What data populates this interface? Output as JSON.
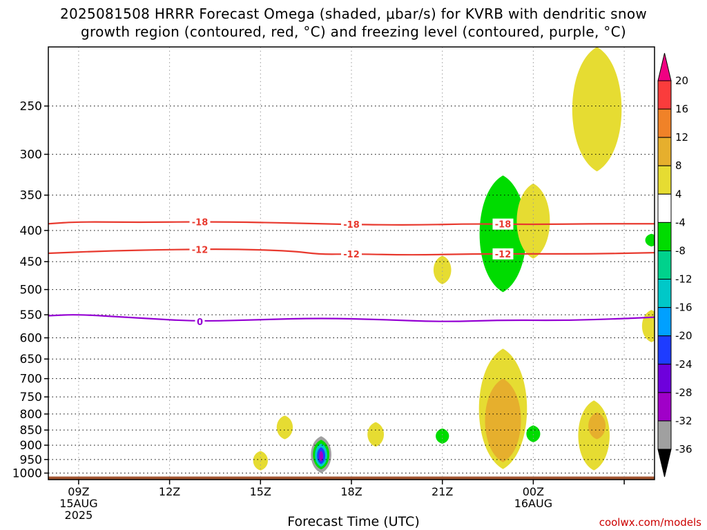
{
  "title_line1": "2025081508 HRRR Forecast Omega (shaded, μbar/s) for KVRB with dendritic snow",
  "title_line2": "growth region (contoured, red, °C) and freezing level (contoured, purple, °C)",
  "credit": "coolwx.com/models",
  "chart_data": {
    "type": "heatmap",
    "title": "2025081508 HRRR Forecast Omega (shaded, μbar/s) for KVRB with dendritic snow growth region (contoured, red, °C) and freezing level (contoured, purple, °C)",
    "xlabel": "Forecast Time (UTC)",
    "ylabel": "",
    "y_scale": "log-pressure (hPa, inverted)",
    "ylim": [
      1025,
      200
    ],
    "y_ticks": [
      250,
      300,
      350,
      400,
      450,
      500,
      550,
      600,
      650,
      700,
      750,
      800,
      850,
      900,
      950,
      1000
    ],
    "x_range_hours": [
      8,
      28
    ],
    "x_ticks": [
      {
        "hour": 9,
        "label": "09Z",
        "sub1": "15AUG",
        "sub2": "2025"
      },
      {
        "hour": 12,
        "label": "12Z",
        "sub1": "",
        "sub2": ""
      },
      {
        "hour": 15,
        "label": "15Z",
        "sub1": "",
        "sub2": ""
      },
      {
        "hour": 18,
        "label": "18Z",
        "sub1": "",
        "sub2": ""
      },
      {
        "hour": 21,
        "label": "21Z",
        "sub1": "",
        "sub2": ""
      },
      {
        "hour": 24,
        "label": "00Z",
        "sub1": "16AUG",
        "sub2": ""
      },
      {
        "hour": 27,
        "label": "",
        "sub1": "",
        "sub2": ""
      }
    ],
    "grid": true,
    "colorbar": {
      "units": "μbar/s",
      "levels": [
        -36,
        -32,
        -28,
        -24,
        -20,
        -16,
        -12,
        -8,
        -4,
        4,
        8,
        12,
        16,
        20
      ],
      "colors": [
        "#000000",
        "#a0a0a0",
        "#a000c8",
        "#6e00dc",
        "#1e3cff",
        "#00a0ff",
        "#00c8c8",
        "#00d28c",
        "#00dc00",
        "#ffffff",
        "#e6dc32",
        "#e6af2d",
        "#f08228",
        "#fa3c3c",
        "#f00082"
      ]
    },
    "contours": [
      {
        "name": "-18",
        "color": "#e8392e",
        "points": [
          [
            8,
            390
          ],
          [
            9,
            387
          ],
          [
            11,
            388
          ],
          [
            13,
            387
          ],
          [
            15,
            388
          ],
          [
            17,
            390
          ],
          [
            18,
            391
          ],
          [
            20,
            392
          ],
          [
            22,
            390
          ],
          [
            24,
            391
          ],
          [
            26,
            390
          ],
          [
            28,
            390
          ]
        ],
        "labels": [
          {
            "hour": 13,
            "text": "-18"
          },
          {
            "hour": 18,
            "text": "-18"
          },
          {
            "hour": 23,
            "text": "-18"
          }
        ]
      },
      {
        "name": "-12",
        "color": "#e8392e",
        "points": [
          [
            8,
            436
          ],
          [
            10,
            432
          ],
          [
            12,
            430
          ],
          [
            14,
            429
          ],
          [
            16,
            432
          ],
          [
            17,
            438
          ],
          [
            18,
            437
          ],
          [
            20,
            439
          ],
          [
            22,
            437
          ],
          [
            24,
            437
          ],
          [
            26,
            437
          ],
          [
            28,
            435
          ]
        ],
        "labels": [
          {
            "hour": 13,
            "text": "-12"
          },
          {
            "hour": 18,
            "text": "-12"
          },
          {
            "hour": 23,
            "text": "-12"
          }
        ]
      },
      {
        "name": "0",
        "color": "#9400d3",
        "points": [
          [
            8,
            552
          ],
          [
            9,
            549
          ],
          [
            11,
            557
          ],
          [
            13,
            564
          ],
          [
            15,
            560
          ],
          [
            17,
            557
          ],
          [
            19,
            560
          ],
          [
            21,
            565
          ],
          [
            23,
            561
          ],
          [
            25,
            562
          ],
          [
            27,
            558
          ],
          [
            28,
            555
          ]
        ],
        "labels": [
          {
            "hour": 13,
            "text": "0"
          }
        ]
      }
    ],
    "omega_features": [
      {
        "hour": 26.1,
        "p_top": 200,
        "p_bottom": 320,
        "value": 6
      },
      {
        "hour": 23.0,
        "p_top": 325,
        "p_bottom": 505,
        "value": -6
      },
      {
        "hour": 24.0,
        "p_top": 335,
        "p_bottom": 445,
        "value": 6
      },
      {
        "hour": 21.0,
        "p_top": 440,
        "p_bottom": 490,
        "value": 6
      },
      {
        "hour": 27.9,
        "p_top": 540,
        "p_bottom": 610,
        "value": 6
      },
      {
        "hour": 27.9,
        "p_top": 405,
        "p_bottom": 425,
        "value": -6
      },
      {
        "hour": 23.0,
        "p_top": 625,
        "p_bottom": 985,
        "value": 6
      },
      {
        "hour": 23.0,
        "p_top": 700,
        "p_bottom": 960,
        "value": 10
      },
      {
        "hour": 26.0,
        "p_top": 760,
        "p_bottom": 990,
        "value": 6
      },
      {
        "hour": 26.1,
        "p_top": 795,
        "p_bottom": 880,
        "value": 10
      },
      {
        "hour": 24.0,
        "p_top": 835,
        "p_bottom": 890,
        "value": -6
      },
      {
        "hour": 21.0,
        "p_top": 845,
        "p_bottom": 895,
        "value": -6
      },
      {
        "hour": 18.8,
        "p_top": 825,
        "p_bottom": 905,
        "value": 6
      },
      {
        "hour": 15.8,
        "p_top": 805,
        "p_bottom": 880,
        "value": 6
      },
      {
        "hour": 15.0,
        "p_top": 920,
        "p_bottom": 990,
        "value": 6
      },
      {
        "hour": 17.0,
        "p_top": 870,
        "p_bottom": 1000,
        "value": -34
      }
    ],
    "ground": {
      "color": "#a0522d"
    }
  }
}
